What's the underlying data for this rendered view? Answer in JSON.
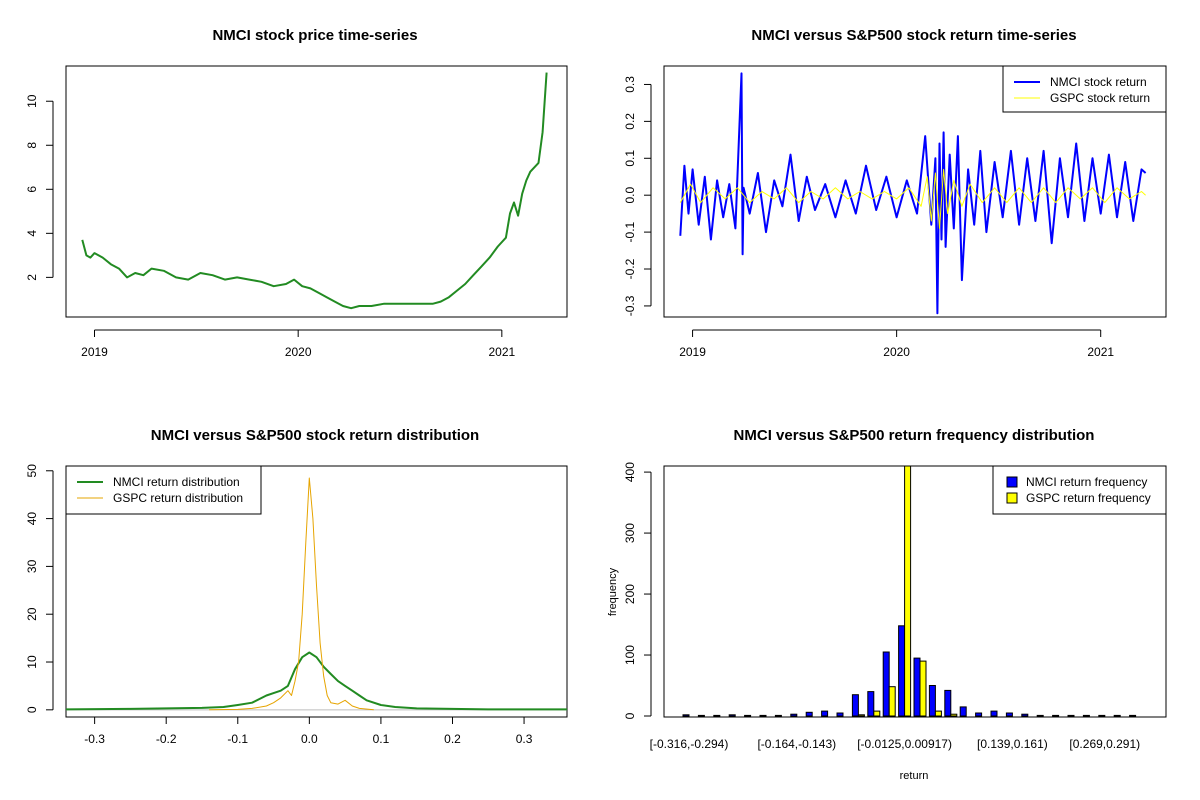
{
  "colors": {
    "price": "#228B22",
    "nmci_return": "#0000FF",
    "gspc_return": "#FFFF00",
    "nmci_density": "#228B22",
    "gspc_density": "#E6A400",
    "nmci_hist": "#0000FF",
    "gspc_hist": "#FFFF00"
  },
  "chart_data": [
    {
      "id": "price",
      "type": "line",
      "title": "NMCI stock price time-series",
      "xlabel": "",
      "ylabel": "",
      "xlim": [
        2018.86,
        2021.32
      ],
      "ylim": [
        0.2,
        11.6
      ],
      "x_ticks": [
        {
          "value": 2019,
          "label": "2019"
        },
        {
          "value": 2020,
          "label": "2020"
        },
        {
          "value": 2021,
          "label": "2021"
        }
      ],
      "y_ticks": [
        {
          "value": 2,
          "label": "2"
        },
        {
          "value": 4,
          "label": "4"
        },
        {
          "value": 6,
          "label": "6"
        },
        {
          "value": 8,
          "label": "8"
        },
        {
          "value": 10,
          "label": "10"
        }
      ],
      "x": [
        2018.94,
        2018.96,
        2018.98,
        2019.0,
        2019.04,
        2019.08,
        2019.12,
        2019.16,
        2019.2,
        2019.24,
        2019.28,
        2019.34,
        2019.4,
        2019.46,
        2019.52,
        2019.58,
        2019.64,
        2019.7,
        2019.76,
        2019.82,
        2019.88,
        2019.94,
        2019.98,
        2020.02,
        2020.06,
        2020.1,
        2020.14,
        2020.18,
        2020.22,
        2020.26,
        2020.3,
        2020.36,
        2020.42,
        2020.48,
        2020.54,
        2020.6,
        2020.66,
        2020.7,
        2020.74,
        2020.78,
        2020.82,
        2020.86,
        2020.9,
        2020.94,
        2020.98,
        2021.02,
        2021.04,
        2021.06,
        2021.08,
        2021.1,
        2021.12,
        2021.14,
        2021.16,
        2021.18,
        2021.2,
        2021.22
      ],
      "values": [
        3.7,
        3.0,
        2.9,
        3.1,
        2.9,
        2.6,
        2.4,
        2.0,
        2.2,
        2.1,
        2.4,
        2.3,
        2.0,
        1.9,
        2.2,
        2.1,
        1.9,
        2.0,
        1.9,
        1.8,
        1.6,
        1.7,
        1.9,
        1.6,
        1.5,
        1.3,
        1.1,
        0.9,
        0.7,
        0.6,
        0.7,
        0.7,
        0.8,
        0.8,
        0.8,
        0.8,
        0.8,
        0.9,
        1.1,
        1.4,
        1.7,
        2.1,
        2.5,
        2.9,
        3.4,
        3.8,
        4.9,
        5.4,
        4.8,
        5.8,
        6.4,
        6.8,
        7.0,
        7.2,
        8.6,
        11.3
      ]
    },
    {
      "id": "returns",
      "type": "line",
      "title": "NMCI versus S&P500 stock return time-series",
      "xlabel": "",
      "ylabel": "",
      "xlim": [
        2018.86,
        2021.32
      ],
      "ylim": [
        -0.33,
        0.35
      ],
      "x_ticks": [
        {
          "value": 2019,
          "label": "2019"
        },
        {
          "value": 2020,
          "label": "2020"
        },
        {
          "value": 2021,
          "label": "2021"
        }
      ],
      "y_ticks": [
        {
          "value": -0.3,
          "label": "-0.3"
        },
        {
          "value": -0.2,
          "label": "-0.2"
        },
        {
          "value": -0.1,
          "label": "-0.1"
        },
        {
          "value": 0.0,
          "label": "0.0"
        },
        {
          "value": 0.1,
          "label": "0.1"
        },
        {
          "value": 0.2,
          "label": "0.2"
        },
        {
          "value": 0.3,
          "label": "0.3"
        }
      ],
      "legend": {
        "position": "top-right"
      },
      "series": [
        {
          "name": "NMCI stock return",
          "x": [
            2018.94,
            2018.96,
            2018.98,
            2019.0,
            2019.03,
            2019.06,
            2019.09,
            2019.12,
            2019.15,
            2019.18,
            2019.21,
            2019.24,
            2019.245,
            2019.25,
            2019.28,
            2019.32,
            2019.36,
            2019.4,
            2019.44,
            2019.48,
            2019.52,
            2019.56,
            2019.6,
            2019.65,
            2019.7,
            2019.75,
            2019.8,
            2019.85,
            2019.9,
            2019.95,
            2020.0,
            2020.05,
            2020.1,
            2020.14,
            2020.17,
            2020.19,
            2020.2,
            2020.21,
            2020.22,
            2020.23,
            2020.24,
            2020.26,
            2020.28,
            2020.3,
            2020.32,
            2020.35,
            2020.38,
            2020.41,
            2020.44,
            2020.48,
            2020.52,
            2020.56,
            2020.6,
            2020.64,
            2020.68,
            2020.72,
            2020.76,
            2020.8,
            2020.84,
            2020.88,
            2020.92,
            2020.96,
            2021.0,
            2021.04,
            2021.08,
            2021.12,
            2021.16,
            2021.2,
            2021.22
          ],
          "values": [
            -0.11,
            0.08,
            -0.05,
            0.07,
            -0.08,
            0.05,
            -0.12,
            0.04,
            -0.06,
            0.03,
            -0.09,
            0.33,
            -0.16,
            0.02,
            -0.05,
            0.06,
            -0.1,
            0.04,
            -0.03,
            0.11,
            -0.07,
            0.05,
            -0.04,
            0.03,
            -0.06,
            0.04,
            -0.05,
            0.08,
            -0.04,
            0.05,
            -0.06,
            0.04,
            -0.05,
            0.16,
            -0.08,
            0.1,
            -0.32,
            0.14,
            -0.12,
            0.17,
            -0.14,
            0.11,
            -0.09,
            0.16,
            -0.23,
            0.07,
            -0.08,
            0.12,
            -0.1,
            0.09,
            -0.06,
            0.12,
            -0.08,
            0.1,
            -0.07,
            0.12,
            -0.13,
            0.1,
            -0.06,
            0.14,
            -0.07,
            0.1,
            -0.05,
            0.11,
            -0.06,
            0.09,
            -0.07,
            0.07,
            0.06
          ]
        },
        {
          "name": "GSPC stock return",
          "x": [
            2018.94,
            2018.99,
            2019.04,
            2019.1,
            2019.16,
            2019.22,
            2019.28,
            2019.34,
            2019.4,
            2019.46,
            2019.52,
            2019.58,
            2019.64,
            2019.7,
            2019.76,
            2019.82,
            2019.88,
            2019.94,
            2020.0,
            2020.06,
            2020.12,
            2020.15,
            2020.17,
            2020.19,
            2020.21,
            2020.23,
            2020.25,
            2020.28,
            2020.32,
            2020.36,
            2020.42,
            2020.48,
            2020.54,
            2020.6,
            2020.66,
            2020.72,
            2020.78,
            2020.84,
            2020.9,
            2020.96,
            2021.02,
            2021.08,
            2021.14,
            2021.2,
            2021.22
          ],
          "values": [
            -0.02,
            0.03,
            -0.02,
            0.02,
            -0.01,
            0.02,
            -0.02,
            0.01,
            -0.01,
            0.02,
            -0.02,
            0.01,
            -0.01,
            0.02,
            -0.01,
            0.01,
            -0.01,
            0.01,
            -0.01,
            0.02,
            -0.03,
            0.05,
            -0.07,
            0.06,
            -0.09,
            0.07,
            -0.05,
            0.04,
            -0.03,
            0.03,
            -0.02,
            0.02,
            -0.02,
            0.02,
            -0.02,
            0.02,
            -0.02,
            0.02,
            -0.01,
            0.02,
            -0.02,
            0.02,
            -0.01,
            0.01,
            0.0
          ]
        }
      ]
    },
    {
      "id": "density",
      "type": "line",
      "title": "NMCI versus S&P500 stock return distribution",
      "xlabel": "",
      "ylabel": "",
      "xlim": [
        -0.34,
        0.36
      ],
      "ylim": [
        -1.5,
        51
      ],
      "x_ticks": [
        {
          "value": -0.3,
          "label": "-0.3"
        },
        {
          "value": -0.2,
          "label": "-0.2"
        },
        {
          "value": -0.1,
          "label": "-0.1"
        },
        {
          "value": 0.0,
          "label": "0.0"
        },
        {
          "value": 0.1,
          "label": "0.1"
        },
        {
          "value": 0.2,
          "label": "0.2"
        },
        {
          "value": 0.3,
          "label": "0.3"
        }
      ],
      "y_ticks": [
        {
          "value": 0,
          "label": "0"
        },
        {
          "value": 10,
          "label": "10"
        },
        {
          "value": 20,
          "label": "20"
        },
        {
          "value": 30,
          "label": "30"
        },
        {
          "value": 40,
          "label": "40"
        },
        {
          "value": 50,
          "label": "50"
        }
      ],
      "legend": {
        "position": "top-left"
      },
      "series": [
        {
          "name": "NMCI return distribution",
          "x": [
            -0.34,
            -0.25,
            -0.2,
            -0.15,
            -0.12,
            -0.1,
            -0.08,
            -0.06,
            -0.05,
            -0.04,
            -0.03,
            -0.02,
            -0.01,
            0.0,
            0.01,
            0.02,
            0.03,
            0.04,
            0.05,
            0.06,
            0.07,
            0.08,
            0.1,
            0.12,
            0.15,
            0.2,
            0.25,
            0.3,
            0.36
          ],
          "values": [
            0.1,
            0.2,
            0.3,
            0.4,
            0.6,
            1.0,
            1.5,
            3.0,
            3.5,
            4.0,
            5.0,
            8.5,
            11.0,
            12.0,
            11.0,
            9.0,
            7.5,
            6.0,
            5.0,
            4.0,
            3.0,
            2.0,
            1.0,
            0.6,
            0.3,
            0.2,
            0.1,
            0.1,
            0.1
          ]
        },
        {
          "name": "GSPC return distribution",
          "x": [
            -0.14,
            -0.1,
            -0.08,
            -0.06,
            -0.05,
            -0.04,
            -0.03,
            -0.025,
            -0.02,
            -0.015,
            -0.01,
            -0.005,
            0.0,
            0.005,
            0.01,
            0.015,
            0.02,
            0.025,
            0.03,
            0.04,
            0.05,
            0.06,
            0.07,
            0.09
          ],
          "values": [
            0.0,
            0.1,
            0.3,
            0.8,
            1.5,
            2.5,
            4.0,
            3.0,
            6.0,
            10.0,
            20.0,
            35.0,
            48.5,
            40.0,
            26.0,
            14.0,
            7.0,
            3.0,
            1.5,
            1.2,
            2.0,
            0.8,
            0.3,
            0.0
          ]
        }
      ]
    },
    {
      "id": "frequency",
      "type": "bar",
      "title": "NMCI versus S&P500 return frequency distribution",
      "xlabel": "return",
      "ylabel": "frequency",
      "ylim": [
        0,
        410
      ],
      "y_ticks": [
        {
          "value": 0,
          "label": "0"
        },
        {
          "value": 100,
          "label": "100"
        },
        {
          "value": 200,
          "label": "200"
        },
        {
          "value": 300,
          "label": "300"
        },
        {
          "value": 400,
          "label": "400"
        }
      ],
      "category_labels": [
        {
          "index": 0,
          "label": "[-0.316,-0.294)"
        },
        {
          "index": 7,
          "label": "[-0.164,-0.143)"
        },
        {
          "index": 14,
          "label": "[-0.0125,0.00917)"
        },
        {
          "index": 21,
          "label": "[0.139,0.161)"
        },
        {
          "index": 27,
          "label": "[0.269,0.291)"
        }
      ],
      "legend": {
        "position": "top-right"
      },
      "series": [
        {
          "name": "NMCI return frequency",
          "values": [
            2,
            1,
            1,
            2,
            1,
            1,
            1,
            3,
            6,
            8,
            5,
            35,
            40,
            105,
            148,
            95,
            50,
            42,
            15,
            5,
            8,
            5,
            3,
            1,
            1,
            1,
            1,
            1,
            1,
            1
          ]
        },
        {
          "name": "GSPC return frequency",
          "values": [
            0,
            0,
            0,
            0,
            0,
            0,
            0,
            0,
            0,
            0,
            0,
            2,
            8,
            48,
            410,
            90,
            8,
            3,
            0,
            0,
            0,
            0,
            0,
            0,
            0,
            0,
            0,
            0,
            0,
            0
          ]
        }
      ]
    }
  ]
}
